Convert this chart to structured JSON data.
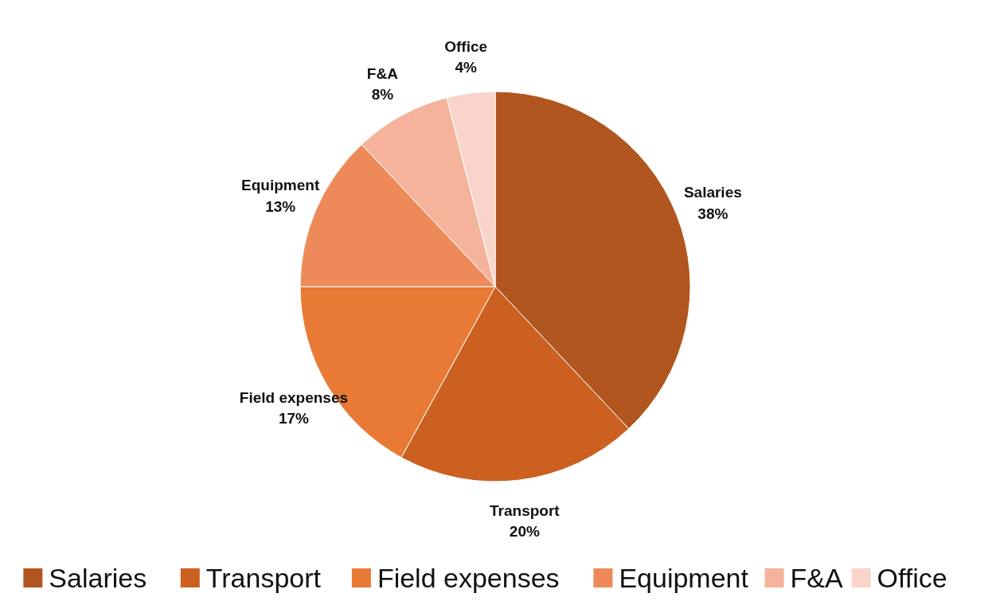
{
  "chart_data": {
    "type": "pie",
    "categories": [
      "Salaries",
      "Transport",
      "Field expenses",
      "Equipment",
      "F&A",
      "Office"
    ],
    "values": [
      38,
      20,
      17,
      13,
      8,
      4
    ],
    "value_labels": [
      "38%",
      "20%",
      "17%",
      "13%",
      "8%",
      "4%"
    ],
    "colors": [
      "#b0561e",
      "#cc6020",
      "#e87a35",
      "#ee8a5a",
      "#f4b39a",
      "#f8d4ca"
    ],
    "legend": "bottom"
  }
}
